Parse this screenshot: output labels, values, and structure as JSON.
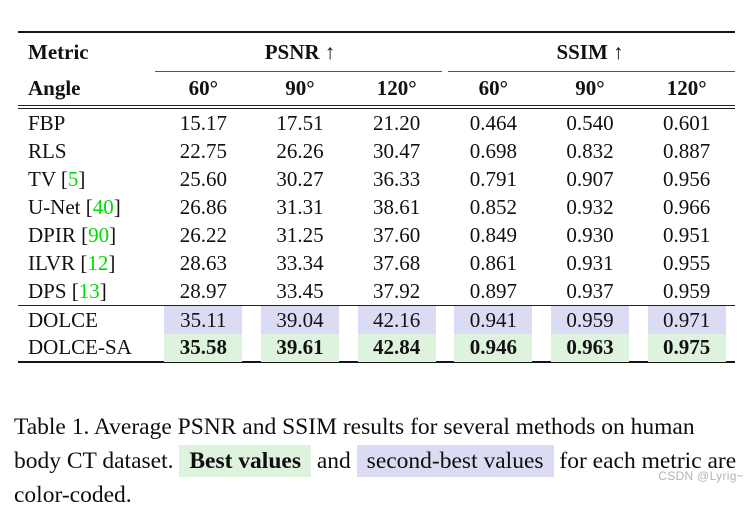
{
  "colors": {
    "best_value_bg": "#def3dd",
    "second_best_bg": "#dbdbf4",
    "citation_green": "#00dd00"
  },
  "table": {
    "corner_header": "Metric",
    "group_headers": {
      "psnr": "PSNR ↑",
      "ssim": "SSIM ↑"
    },
    "angle_header": "Angle",
    "angle_columns": [
      "60°",
      "90°",
      "120°",
      "60°",
      "90°",
      "120°"
    ],
    "rows": [
      {
        "method": "FBP",
        "cite": "",
        "values": [
          "15.17",
          "17.51",
          "21.20",
          "0.464",
          "0.540",
          "0.601"
        ],
        "highlight": "none",
        "section": "main"
      },
      {
        "method": "RLS",
        "cite": "",
        "values": [
          "22.75",
          "26.26",
          "30.47",
          "0.698",
          "0.832",
          "0.887"
        ],
        "highlight": "none",
        "section": "main"
      },
      {
        "method": "TV",
        "cite": "5",
        "values": [
          "25.60",
          "30.27",
          "36.33",
          "0.791",
          "0.907",
          "0.956"
        ],
        "highlight": "none",
        "section": "main"
      },
      {
        "method": "U-Net",
        "cite": "40",
        "values": [
          "26.86",
          "31.31",
          "38.61",
          "0.852",
          "0.932",
          "0.966"
        ],
        "highlight": "none",
        "section": "main"
      },
      {
        "method": "DPIR",
        "cite": "90",
        "values": [
          "26.22",
          "31.25",
          "37.60",
          "0.849",
          "0.930",
          "0.951"
        ],
        "highlight": "none",
        "section": "main"
      },
      {
        "method": "ILVR",
        "cite": "12",
        "values": [
          "28.63",
          "33.34",
          "37.68",
          "0.861",
          "0.931",
          "0.955"
        ],
        "highlight": "none",
        "section": "main"
      },
      {
        "method": "DPS",
        "cite": "13",
        "values": [
          "28.97",
          "33.45",
          "37.92",
          "0.897",
          "0.937",
          "0.959"
        ],
        "highlight": "none",
        "section": "main"
      },
      {
        "method": "DOLCE",
        "cite": "",
        "values": [
          "35.11",
          "39.04",
          "42.16",
          "0.941",
          "0.959",
          "0.971"
        ],
        "highlight": "second",
        "section": "bottom"
      },
      {
        "method": "DOLCE-SA",
        "cite": "",
        "values": [
          "35.58",
          "39.61",
          "42.84",
          "0.946",
          "0.963",
          "0.975"
        ],
        "highlight": "best",
        "section": "bottom"
      }
    ]
  },
  "caption": {
    "part1": "Table 1. Average PSNR and SSIM results for several methods on human body CT dataset.",
    "best_label": "Best values",
    "and_text": "and",
    "second_label": "second-best values",
    "part2": "for each metric are color-coded."
  },
  "watermark": "CSDN @Lyrig~"
}
